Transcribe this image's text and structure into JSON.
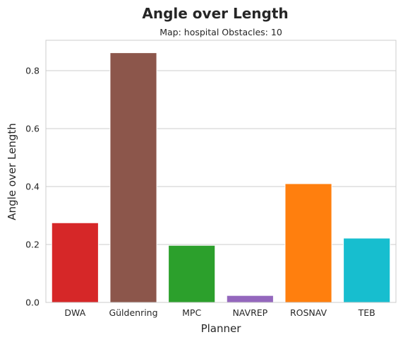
{
  "chart_data": {
    "type": "bar",
    "title": "Angle over Length",
    "subtitle": "Map: hospital Obstacles: 10",
    "xlabel": "Planner",
    "ylabel": "Angle over Length",
    "categories": [
      "DWA",
      "Güldenring",
      "MPC",
      "NAVREP",
      "ROSNAV",
      "TEB"
    ],
    "values": [
      0.275,
      0.862,
      0.197,
      0.024,
      0.41,
      0.222
    ],
    "colors": [
      "#d62728",
      "#8c564b",
      "#2ca02c",
      "#9467bd",
      "#ff7f0e",
      "#17becf"
    ],
    "ylim": [
      0,
      0.905
    ],
    "yticks": [
      0.0,
      0.2,
      0.4,
      0.6,
      0.8
    ],
    "ytick_labels": [
      "0.0",
      "0.2",
      "0.4",
      "0.6",
      "0.8"
    ],
    "grid": "horizontal",
    "legend": "none"
  }
}
